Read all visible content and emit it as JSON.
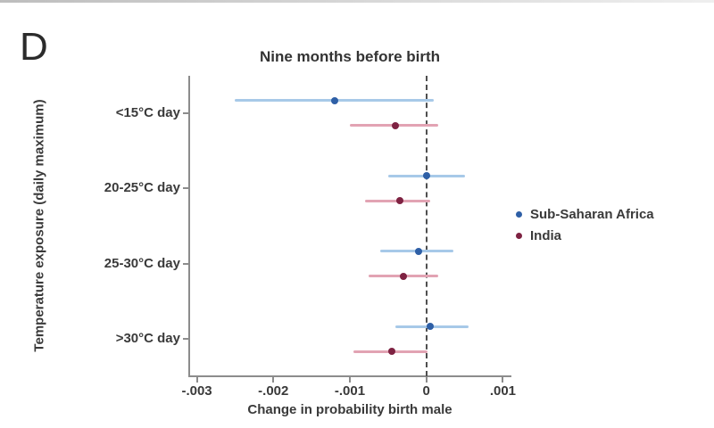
{
  "panel": {
    "label": "D"
  },
  "chart_data": {
    "type": "scatter",
    "subtype": "coefficient-ci-plot",
    "title": "Nine months before birth",
    "xlabel": "Change in probability birth male",
    "ylabel": "Temperature exposure (daily maximum)",
    "categories": [
      "<15°C day",
      "20-25°C day",
      "25-30°C day",
      ">30°C day"
    ],
    "xlim": [
      -0.0031,
      0.0011
    ],
    "xticks": [
      {
        "value": -0.003,
        "label": "-.003"
      },
      {
        "value": -0.002,
        "label": "-.002"
      },
      {
        "value": -0.001,
        "label": "-.001"
      },
      {
        "value": 0,
        "label": "0"
      },
      {
        "value": 0.001,
        "label": ".001"
      }
    ],
    "zero_reference_line": 0,
    "grid": false,
    "legend_position": "right",
    "series": [
      {
        "name": "Sub-Saharan Africa",
        "line_color": "#a7c9e8",
        "marker_color": "#2e5fa6",
        "points": [
          {
            "category": "<15°C day",
            "est": -0.0012,
            "ci_low": -0.0025,
            "ci_high": 0.0001
          },
          {
            "category": "20-25°C day",
            "est": 0.0,
            "ci_low": -0.0005,
            "ci_high": 0.0005
          },
          {
            "category": "25-30°C day",
            "est": -0.0001,
            "ci_low": -0.0006,
            "ci_high": 0.00035
          },
          {
            "category": ">30°C day",
            "est": 5e-05,
            "ci_low": -0.0004,
            "ci_high": 0.00055
          }
        ]
      },
      {
        "name": "India",
        "line_color": "#e2a3b3",
        "marker_color": "#7e2242",
        "points": [
          {
            "category": "<15°C day",
            "est": -0.0004,
            "ci_low": -0.001,
            "ci_high": 0.00015
          },
          {
            "category": "20-25°C day",
            "est": -0.00035,
            "ci_low": -0.0008,
            "ci_high": 5e-05
          },
          {
            "category": "25-30°C day",
            "est": -0.0003,
            "ci_low": -0.00075,
            "ci_high": 0.00015
          },
          {
            "category": ">30°C day",
            "est": -0.00045,
            "ci_low": -0.00095,
            "ci_high": 2e-05
          }
        ]
      }
    ],
    "colors": {
      "axis": "#8c8c8c",
      "zero_line": "#4f4f4f",
      "text": "#3a3a3a"
    }
  }
}
